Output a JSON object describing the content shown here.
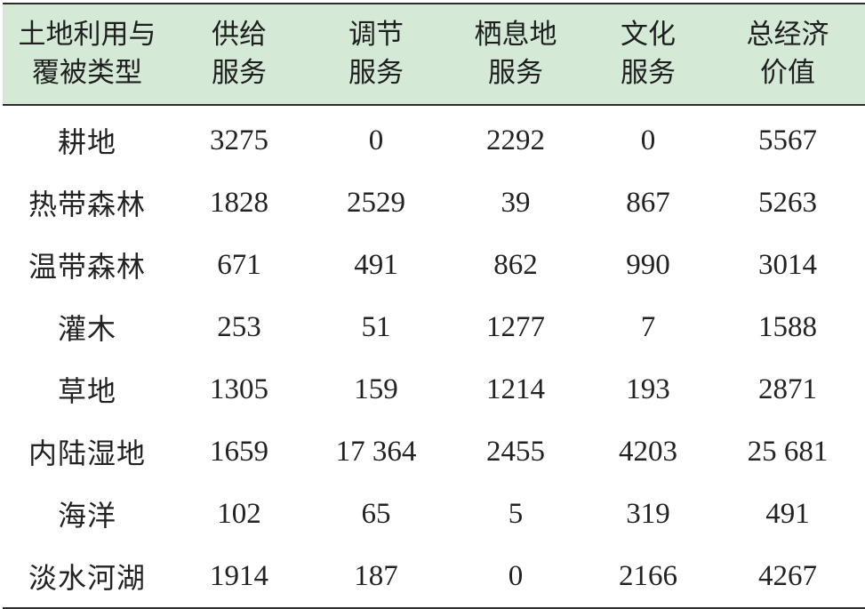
{
  "table": {
    "headers": [
      [
        "土地利用与",
        "覆被类型"
      ],
      [
        "供给",
        "服务"
      ],
      [
        "调节",
        "服务"
      ],
      [
        "栖息地",
        "服务"
      ],
      [
        "文化",
        "服务"
      ],
      [
        "总经济",
        "价值"
      ]
    ],
    "rows": [
      [
        "耕地",
        "3275",
        "0",
        "2292",
        "0",
        "5567"
      ],
      [
        "热带森林",
        "1828",
        "2529",
        "39",
        "867",
        "5263"
      ],
      [
        "温带森林",
        "671",
        "491",
        "862",
        "990",
        "3014"
      ],
      [
        "灌木",
        "253",
        "51",
        "1277",
        "7",
        "1588"
      ],
      [
        "草地",
        "1305",
        "159",
        "1214",
        "193",
        "2871"
      ],
      [
        "内陆湿地",
        "1659",
        "17 364",
        "2455",
        "4203",
        "25 681"
      ],
      [
        "海洋",
        "102",
        "65",
        "5",
        "319",
        "491"
      ],
      [
        "淡水河湖",
        "1914",
        "187",
        "0",
        "2166",
        "4267"
      ]
    ]
  },
  "colors": {
    "header_background": "#d4e9d6",
    "rule": "#2c2c2c",
    "text": "#222222"
  }
}
